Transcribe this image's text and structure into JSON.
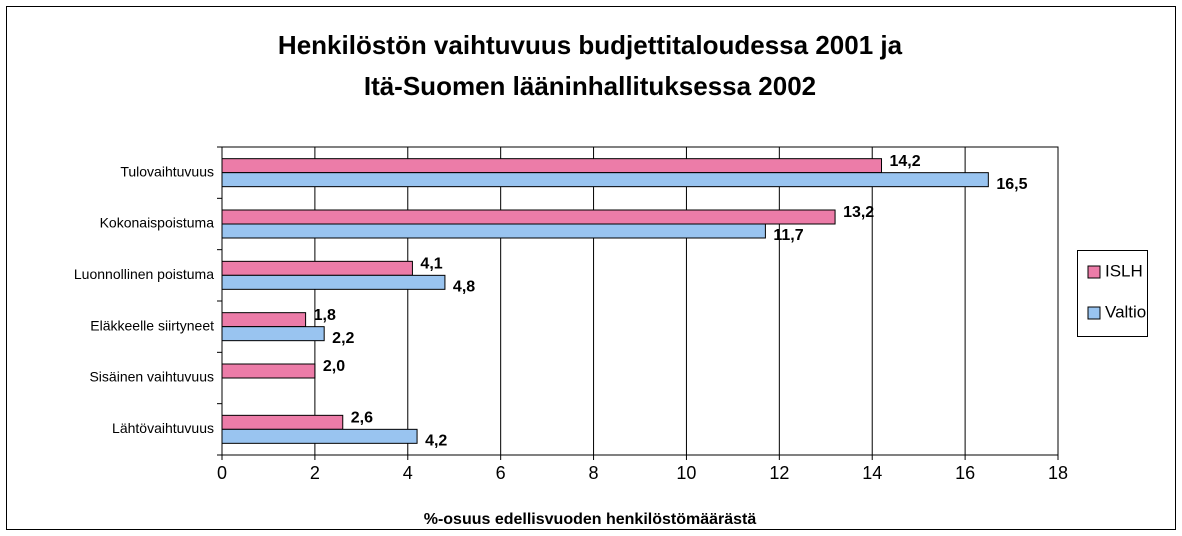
{
  "chart_data": {
    "type": "bar",
    "orientation": "horizontal",
    "title": [
      "Henkilöstön vaihtuvuus budjettitaloudessa 2001 ja",
      "Itä-Suomen lääninhallituksessa 2002"
    ],
    "x_label": "%-osuus edellisvuoden henkilöstömäärästä",
    "categories": [
      "Tulovaihtuvuus",
      "Kokonaispoistuma",
      "Luonnollinen poistuma",
      "Eläkkeelle siirtyneet",
      "Sisäinen vaihtuvuus",
      "Lähtövaihtuvuus"
    ],
    "series": [
      {
        "name": "ISLH",
        "color": "#ec7ca8",
        "values": [
          14.2,
          13.2,
          4.1,
          1.8,
          2.0,
          2.6
        ],
        "value_labels": [
          "14,2",
          "13,2",
          "4,1",
          "1,8",
          "2,0",
          "2,6"
        ]
      },
      {
        "name": "Valtio",
        "color": "#99c4f0",
        "values": [
          16.5,
          11.7,
          4.8,
          2.2,
          null,
          4.2
        ],
        "value_labels": [
          "16,5",
          "11,7",
          "4,8",
          "2,2",
          null,
          "4,2"
        ]
      }
    ],
    "xlim": [
      0,
      18
    ],
    "xticks": [
      0,
      2,
      4,
      6,
      8,
      10,
      12,
      14,
      16,
      18
    ],
    "grid": true,
    "legend": "right"
  }
}
